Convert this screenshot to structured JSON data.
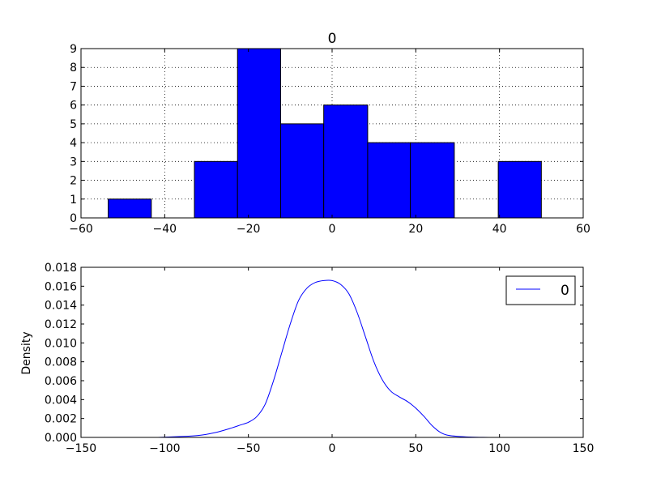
{
  "chart_data": [
    {
      "type": "bar",
      "subtype": "histogram",
      "title": "0",
      "xlabel": "",
      "ylabel": "",
      "xlim": [
        -60,
        60
      ],
      "ylim": [
        0,
        9
      ],
      "xticks": [
        "−60",
        "−40",
        "−20",
        "0",
        "20",
        "40",
        "60"
      ],
      "yticks": [
        "0",
        "1",
        "2",
        "3",
        "4",
        "5",
        "6",
        "7",
        "8",
        "9"
      ],
      "grid": true,
      "bar_color": "#0000ff",
      "bins": [
        {
          "x0": -53.5,
          "x1": -43.2,
          "count": 1
        },
        {
          "x0": -43.2,
          "x1": -32.9,
          "count": 0
        },
        {
          "x0": -32.9,
          "x1": -22.6,
          "count": 3
        },
        {
          "x0": -22.6,
          "x1": -12.3,
          "count": 9
        },
        {
          "x0": -12.3,
          "x1": -2.0,
          "count": 5
        },
        {
          "x0": -2.0,
          "x1": 8.5,
          "count": 6
        },
        {
          "x0": 8.5,
          "x1": 18.7,
          "count": 4
        },
        {
          "x0": 18.7,
          "x1": 29.2,
          "count": 4
        },
        {
          "x0": 29.2,
          "x1": 39.7,
          "count": 0
        },
        {
          "x0": 39.7,
          "x1": 50.0,
          "count": 3
        }
      ]
    },
    {
      "type": "line",
      "subtype": "density",
      "title": "",
      "xlabel": "",
      "ylabel": "Density",
      "xlim": [
        -150,
        150
      ],
      "ylim": [
        0,
        0.018
      ],
      "xticks": [
        "−150",
        "−100",
        "−50",
        "0",
        "50",
        "100",
        "150"
      ],
      "yticks": [
        "0.000",
        "0.002",
        "0.004",
        "0.006",
        "0.008",
        "0.010",
        "0.012",
        "0.014",
        "0.016",
        "0.018"
      ],
      "grid": false,
      "legend": {
        "position": "top-right",
        "entries": [
          "0"
        ]
      },
      "series": [
        {
          "name": "0",
          "color": "#0000ff",
          "x": [
            -104,
            -90,
            -80,
            -70,
            -60,
            -55,
            -50,
            -45,
            -40,
            -35,
            -30,
            -25,
            -20,
            -15,
            -10,
            -5,
            0,
            5,
            10,
            15,
            20,
            25,
            30,
            35,
            40,
            45,
            50,
            55,
            60,
            65,
            70,
            80,
            90,
            100
          ],
          "y": [
            0.0,
            0.0001,
            0.0002,
            0.0005,
            0.001,
            0.0013,
            0.0016,
            0.0022,
            0.0035,
            0.006,
            0.009,
            0.012,
            0.0145,
            0.0158,
            0.0164,
            0.0166,
            0.0166,
            0.0162,
            0.0152,
            0.0132,
            0.0106,
            0.008,
            0.0061,
            0.0049,
            0.0043,
            0.0038,
            0.0031,
            0.0022,
            0.0012,
            0.0005,
            0.0002,
            5e-05,
            1e-05,
            0.0
          ]
        }
      ]
    }
  ]
}
